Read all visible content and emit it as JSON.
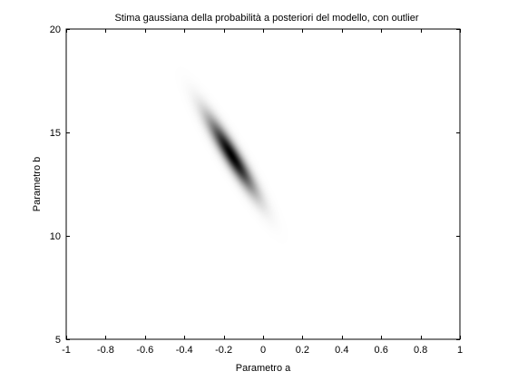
{
  "chart_data": {
    "type": "heatmap",
    "title": "Stima gaussiana della probabilità a posteriori del modello, con outlier",
    "xlabel": "Parametro a",
    "ylabel": "Parametro b",
    "xlim": [
      -1,
      1
    ],
    "ylim": [
      5,
      20
    ],
    "xticks": [
      -1,
      -0.8,
      -0.6,
      -0.4,
      -0.2,
      0,
      0.2,
      0.4,
      0.6,
      0.8,
      1
    ],
    "xtick_labels": [
      "-1",
      "-0.8",
      "-0.6",
      "-0.4",
      "-0.2",
      "0",
      "0.2",
      "0.4",
      "0.6",
      "0.8",
      "1"
    ],
    "yticks": [
      5,
      10,
      15,
      20
    ],
    "ytick_labels": [
      "5",
      "10",
      "15",
      "20"
    ],
    "grid": false,
    "colormap": "gray-inverted",
    "distribution": {
      "kind": "gaussian-2d",
      "mean": [
        -0.16,
        13.9
      ],
      "std": [
        0.08,
        1.2
      ],
      "correlation": -0.92
    },
    "colors": {
      "background": "#ffffff",
      "axes": "#000000",
      "peak": "#000000"
    }
  }
}
